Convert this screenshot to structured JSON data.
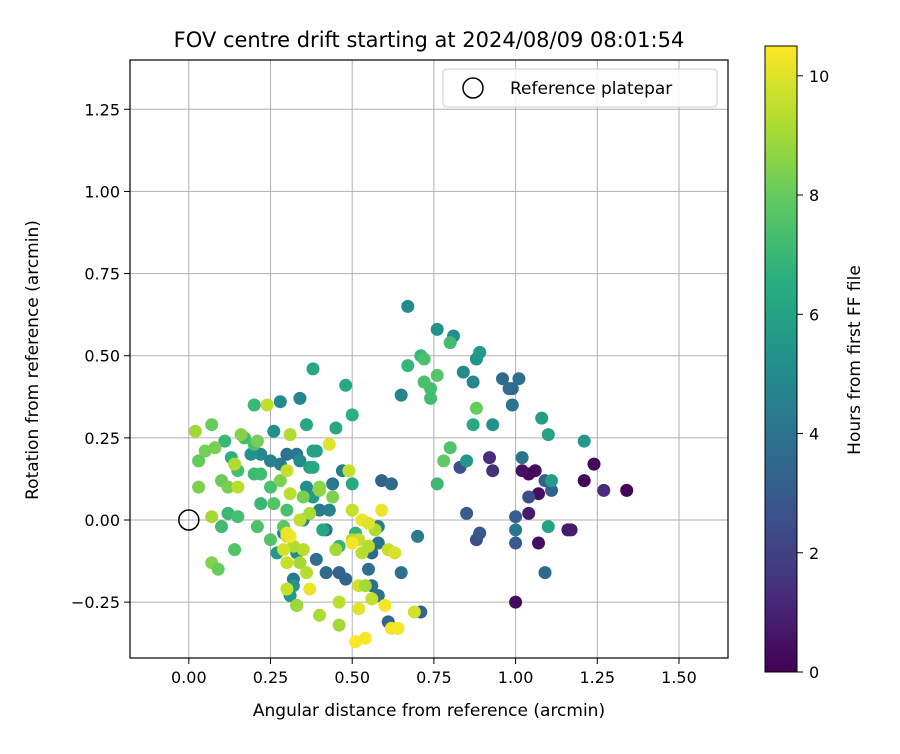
{
  "chart_data": {
    "type": "scatter",
    "title": "FOV centre drift starting at 2024/08/09 08:01:54",
    "xlabel": "Angular distance from reference (arcmin)",
    "ylabel": "Rotation from reference (arcmin)",
    "xlim": [
      -0.18,
      1.65
    ],
    "ylim": [
      -0.42,
      1.4
    ],
    "xticks": [
      0.0,
      0.25,
      0.5,
      0.75,
      1.0,
      1.25,
      1.5
    ],
    "xtick_labels": [
      "0.00",
      "0.25",
      "0.50",
      "0.75",
      "1.00",
      "1.25",
      "1.50"
    ],
    "yticks": [
      -0.25,
      0.0,
      0.25,
      0.5,
      0.75,
      1.0,
      1.25
    ],
    "ytick_labels": [
      "−0.25",
      "0.00",
      "0.25",
      "0.50",
      "0.75",
      "1.00",
      "1.25"
    ],
    "grid": true,
    "legend_placement": "top-right",
    "legend": [
      {
        "label": "Reference platepar",
        "marker": "open-circle"
      }
    ],
    "reference_point": {
      "x": 0.0,
      "y": 0.0
    },
    "colorbar": {
      "label": "Hours from first FF file",
      "min": 0,
      "max": 10.5,
      "colormap": "viridis",
      "ticks": [
        0,
        2,
        4,
        6,
        8,
        10
      ],
      "tick_labels": [
        "0",
        "2",
        "4",
        "6",
        "8",
        "10"
      ]
    },
    "points": [
      [
        1.34,
        0.09,
        0.1
      ],
      [
        1.24,
        0.17,
        0.2
      ],
      [
        1.21,
        0.12,
        0.2
      ],
      [
        1.06,
        0.15,
        0.3
      ],
      [
        1.04,
        0.14,
        0.2
      ],
      [
        1.02,
        0.15,
        0.5
      ],
      [
        1.0,
        -0.25,
        0.3
      ],
      [
        1.07,
        -0.07,
        0.4
      ],
      [
        1.07,
        0.08,
        0.4
      ],
      [
        1.04,
        0.02,
        0.8
      ],
      [
        1.16,
        -0.03,
        0.7
      ],
      [
        1.17,
        -0.03,
        0.8
      ],
      [
        1.27,
        0.09,
        1.3
      ],
      [
        0.93,
        0.15,
        1.5
      ],
      [
        0.92,
        0.19,
        1.3
      ],
      [
        1.04,
        0.07,
        2.5
      ],
      [
        1.0,
        -0.07,
        3.0
      ],
      [
        1.0,
        0.01,
        3.1
      ],
      [
        0.88,
        -0.06,
        2.5
      ],
      [
        0.89,
        -0.04,
        2.8
      ],
      [
        0.83,
        0.16,
        2.7
      ],
      [
        0.85,
        0.02,
        3.0
      ],
      [
        1.09,
        0.12,
        3.1
      ],
      [
        1.11,
        0.09,
        3.2
      ],
      [
        1.09,
        -0.16,
        3.6
      ],
      [
        0.71,
        -0.28,
        3.4
      ],
      [
        0.96,
        0.43,
        3.6
      ],
      [
        0.99,
        0.4,
        3.7
      ],
      [
        1.01,
        0.43,
        3.8
      ],
      [
        0.98,
        0.4,
        3.6
      ],
      [
        0.99,
        0.35,
        4.0
      ],
      [
        1.02,
        0.19,
        4.0
      ],
      [
        1.0,
        -0.03,
        4.2
      ],
      [
        0.59,
        0.12,
        3.3
      ],
      [
        0.62,
        0.11,
        3.6
      ],
      [
        0.65,
        -0.16,
        3.8
      ],
      [
        0.58,
        -0.07,
        3.9
      ],
      [
        0.56,
        -0.1,
        3.5
      ],
      [
        0.55,
        -0.15,
        3.8
      ],
      [
        0.56,
        -0.2,
        3.9
      ],
      [
        0.58,
        -0.23,
        4.0
      ],
      [
        0.58,
        -0.02,
        4.5
      ],
      [
        0.61,
        -0.31,
        3.4
      ],
      [
        0.7,
        -0.05,
        4.3
      ],
      [
        0.65,
        0.38,
        4.7
      ],
      [
        0.87,
        0.42,
        4.8
      ],
      [
        0.84,
        0.45,
        5.0
      ],
      [
        0.81,
        0.56,
        5.2
      ],
      [
        0.76,
        0.58,
        5.3
      ],
      [
        0.67,
        0.65,
        5.0
      ],
      [
        0.88,
        0.49,
        5.3
      ],
      [
        0.89,
        0.51,
        5.6
      ],
      [
        0.93,
        0.29,
        5.3
      ],
      [
        1.08,
        0.31,
        5.8
      ],
      [
        1.1,
        0.26,
        6.0
      ],
      [
        1.21,
        0.24,
        5.5
      ],
      [
        1.1,
        -0.02,
        6.0
      ],
      [
        1.11,
        0.12,
        5.8
      ],
      [
        0.87,
        0.29,
        6.4
      ],
      [
        0.85,
        0.18,
        5.5
      ],
      [
        0.46,
        -0.16,
        3.2
      ],
      [
        0.48,
        -0.18,
        3.4
      ],
      [
        0.42,
        -0.16,
        3.6
      ],
      [
        0.39,
        -0.12,
        3.8
      ],
      [
        0.42,
        -0.03,
        4.0
      ],
      [
        0.44,
        0.11,
        4.2
      ],
      [
        0.47,
        0.15,
        4.4
      ],
      [
        0.43,
        0.03,
        4.6
      ],
      [
        0.4,
        0.03,
        4.3
      ],
      [
        0.35,
        0.0,
        4.8
      ],
      [
        0.32,
        -0.18,
        4.2
      ],
      [
        0.29,
        -0.04,
        4.5
      ],
      [
        0.3,
        0.2,
        4.0
      ],
      [
        0.33,
        0.2,
        4.1
      ],
      [
        0.28,
        0.17,
        4.3
      ],
      [
        0.25,
        0.18,
        4.6
      ],
      [
        0.22,
        0.2,
        4.9
      ],
      [
        0.19,
        0.2,
        5.3
      ],
      [
        0.34,
        0.18,
        5.0
      ],
      [
        0.36,
        0.1,
        5.2
      ],
      [
        0.38,
        0.07,
        5.6
      ],
      [
        0.33,
        -0.1,
        5.0
      ],
      [
        0.27,
        -0.1,
        5.6
      ],
      [
        0.32,
        -0.2,
        5.4
      ],
      [
        0.33,
        -0.26,
        6.0
      ],
      [
        0.31,
        -0.23,
        5.6
      ],
      [
        0.26,
        0.27,
        5.2
      ],
      [
        0.28,
        0.36,
        5.0
      ],
      [
        0.34,
        0.37,
        4.8
      ],
      [
        0.36,
        0.29,
        6.2
      ],
      [
        0.38,
        0.21,
        6.0
      ],
      [
        0.39,
        0.21,
        6.0
      ],
      [
        0.45,
        0.28,
        6.3
      ],
      [
        0.48,
        0.41,
        6.4
      ],
      [
        0.38,
        0.46,
        6.3
      ],
      [
        0.5,
        0.32,
        6.6
      ],
      [
        0.5,
        0.11,
        6.4
      ],
      [
        0.51,
        -0.04,
        6.8
      ],
      [
        0.46,
        -0.08,
        6.8
      ],
      [
        0.41,
        -0.03,
        6.2
      ],
      [
        0.37,
        0.16,
        6.0
      ],
      [
        0.38,
        0.16,
        6.3
      ],
      [
        0.2,
        0.35,
        7.0
      ],
      [
        0.11,
        0.24,
        7.0
      ],
      [
        0.17,
        0.25,
        7.2
      ],
      [
        0.2,
        0.23,
        7.4
      ],
      [
        0.13,
        0.19,
        6.6
      ],
      [
        0.15,
        0.15,
        7.3
      ],
      [
        0.2,
        0.14,
        7.1
      ],
      [
        0.22,
        0.14,
        7.2
      ],
      [
        0.25,
        0.1,
        7.4
      ],
      [
        0.26,
        0.05,
        7.6
      ],
      [
        0.22,
        0.05,
        7.0
      ],
      [
        0.12,
        0.02,
        7.0
      ],
      [
        0.15,
        0.01,
        7.3
      ],
      [
        0.1,
        -0.02,
        7.2
      ],
      [
        0.21,
        -0.02,
        7.5
      ],
      [
        0.25,
        -0.06,
        7.6
      ],
      [
        0.29,
        -0.02,
        7.8
      ],
      [
        0.3,
        0.03,
        7.4
      ],
      [
        0.14,
        -0.09,
        7.6
      ],
      [
        0.05,
        0.21,
        8.2
      ],
      [
        0.03,
        0.18,
        8.0
      ],
      [
        0.07,
        0.29,
        8.0
      ],
      [
        0.08,
        0.22,
        8.3
      ],
      [
        0.1,
        0.12,
        8.1
      ],
      [
        0.12,
        0.1,
        8.3
      ],
      [
        0.03,
        0.1,
        8.4
      ],
      [
        0.07,
        -0.13,
        8.5
      ],
      [
        0.09,
        -0.15,
        8.0
      ],
      [
        0.16,
        0.26,
        8.5
      ],
      [
        0.21,
        0.24,
        8.2
      ],
      [
        0.28,
        0.12,
        8.4
      ],
      [
        0.35,
        0.07,
        8.3
      ],
      [
        0.4,
        0.1,
        8.6
      ],
      [
        0.44,
        0.07,
        8.4
      ],
      [
        0.4,
        0.09,
        8.7
      ],
      [
        0.71,
        0.5,
        7.0
      ],
      [
        0.74,
        0.4,
        7.3
      ],
      [
        0.72,
        0.42,
        7.4
      ],
      [
        0.74,
        0.37,
        7.2
      ],
      [
        0.76,
        0.44,
        7.7
      ],
      [
        0.72,
        0.49,
        7.4
      ],
      [
        0.67,
        0.47,
        6.9
      ],
      [
        0.8,
        0.54,
        7.2
      ],
      [
        0.8,
        0.22,
        7.6
      ],
      [
        0.78,
        0.18,
        7.9
      ],
      [
        0.76,
        0.11,
        7.1
      ],
      [
        0.88,
        0.34,
        8.0
      ],
      [
        0.02,
        0.27,
        9.0
      ],
      [
        0.07,
        0.01,
        9.0
      ],
      [
        0.14,
        0.17,
        9.2
      ],
      [
        0.15,
        0.1,
        9.4
      ],
      [
        0.24,
        0.35,
        9.5
      ],
      [
        0.31,
        0.26,
        9.2
      ],
      [
        0.3,
        0.15,
        9.6
      ],
      [
        0.31,
        0.08,
        9.4
      ],
      [
        0.37,
        0.02,
        9.1
      ],
      [
        0.34,
        0.0,
        9.5
      ],
      [
        0.3,
        -0.05,
        9.7
      ],
      [
        0.32,
        -0.08,
        9.2
      ],
      [
        0.35,
        -0.09,
        9.4
      ],
      [
        0.34,
        -0.13,
        9.0
      ],
      [
        0.3,
        -0.13,
        9.6
      ],
      [
        0.36,
        -0.16,
        9.3
      ],
      [
        0.3,
        -0.21,
        9.6
      ],
      [
        0.33,
        -0.26,
        8.9
      ],
      [
        0.4,
        -0.29,
        9.1
      ],
      [
        0.46,
        -0.25,
        9.4
      ],
      [
        0.46,
        -0.32,
        9.0
      ],
      [
        0.49,
        0.15,
        9.5
      ],
      [
        0.45,
        -0.09,
        9.0
      ],
      [
        0.5,
        -0.06,
        9.2
      ],
      [
        0.52,
        -0.06,
        9.6
      ],
      [
        0.53,
        -0.1,
        9.4
      ],
      [
        0.5,
        0.03,
        9.6
      ],
      [
        0.55,
        -0.08,
        9.3
      ],
      [
        0.56,
        -0.24,
        9.6
      ],
      [
        0.52,
        -0.2,
        9.8
      ],
      [
        0.54,
        -0.2,
        9.0
      ],
      [
        0.57,
        -0.03,
        9.2
      ],
      [
        0.61,
        -0.09,
        9.6
      ],
      [
        0.63,
        -0.1,
        9.9
      ],
      [
        0.69,
        -0.28,
        9.8
      ],
      [
        0.43,
        0.23,
        10.0
      ],
      [
        0.31,
        -0.05,
        10.4
      ],
      [
        0.3,
        -0.04,
        10.2
      ],
      [
        0.29,
        -0.09,
        9.8
      ],
      [
        0.37,
        -0.21,
        10.2
      ],
      [
        0.52,
        -0.27,
        10.0
      ],
      [
        0.5,
        -0.07,
        10.3
      ],
      [
        0.53,
        0.0,
        10.2
      ],
      [
        0.55,
        -0.01,
        10.0
      ],
      [
        0.59,
        0.03,
        10.2
      ],
      [
        0.6,
        -0.26,
        10.4
      ],
      [
        0.51,
        -0.37,
        10.5
      ],
      [
        0.54,
        -0.36,
        10.4
      ],
      [
        0.62,
        -0.33,
        10.3
      ],
      [
        0.64,
        -0.33,
        10.4
      ]
    ]
  }
}
